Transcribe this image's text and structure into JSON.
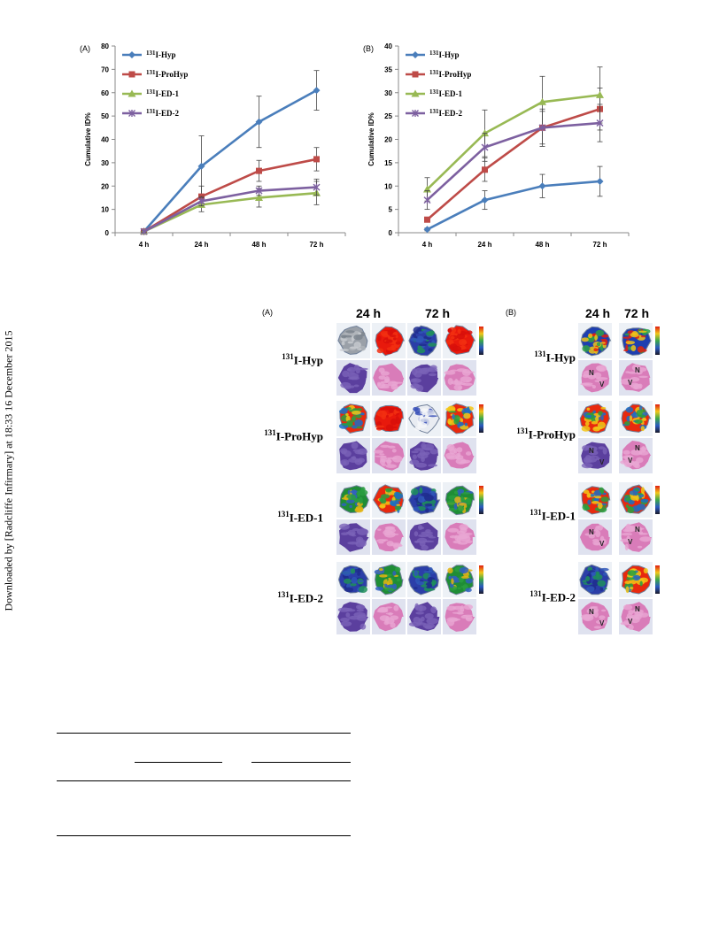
{
  "watermark": {
    "text": "Downloaded by [Radcliffe Infirmary] at 18:33 16 December 2015"
  },
  "figure1": {
    "chart_data": [
      {
        "type": "line",
        "panel_label": "(A)",
        "ylabel": "Cumulative ID%",
        "xlabel": "",
        "categories": [
          "4 h",
          "24 h",
          "48 h",
          "72 h"
        ],
        "ylim": [
          0,
          80
        ],
        "yticks": [
          0,
          10,
          20,
          30,
          40,
          50,
          60,
          70,
          80
        ],
        "legend_position": "top-left",
        "series": [
          {
            "name": "131I-Hyp",
            "sup": "131",
            "base": "I-Hyp",
            "values": [
              0.5,
              28.5,
              47.5,
              61
            ],
            "err": [
              0.3,
              13,
              11,
              8.5
            ],
            "color": "#4a7ebb",
            "marker": "diamond"
          },
          {
            "name": "131I-ProHyp",
            "sup": "131",
            "base": "I-ProHyp",
            "values": [
              0.5,
              15.5,
              26.5,
              31.5
            ],
            "err": [
              0.3,
              4.5,
              4.5,
              5
            ],
            "color": "#be4b48",
            "marker": "square"
          },
          {
            "name": "131I-ED-1",
            "sup": "131",
            "base": "I-ED-1",
            "values": [
              0.5,
              12,
              15,
              17
            ],
            "err": [
              0.3,
              3,
              4,
              5
            ],
            "color": "#98b954",
            "marker": "triangle"
          },
          {
            "name": "131I-ED-2",
            "sup": "131",
            "base": "I-ED-2",
            "values": [
              0.5,
              13.5,
              18,
              19.5
            ],
            "err": [
              0.3,
              2,
              2,
              3.5
            ],
            "color": "#7d60a0",
            "marker": "x"
          }
        ]
      },
      {
        "type": "line",
        "panel_label": "(B)",
        "ylabel": "Cumulative ID%",
        "xlabel": "",
        "categories": [
          "4 h",
          "24 h",
          "48 h",
          "72 h"
        ],
        "ylim": [
          0,
          40
        ],
        "yticks": [
          0,
          5,
          10,
          15,
          20,
          25,
          30,
          35,
          40
        ],
        "legend_position": "top-left",
        "series": [
          {
            "name": "131I-Hyp",
            "sup": "131",
            "base": "I-Hyp",
            "values": [
              0.7,
              7,
              10,
              11
            ],
            "err": [
              0.3,
              2,
              2.5,
              3.2
            ],
            "color": "#4a7ebb",
            "marker": "diamond"
          },
          {
            "name": "131I-ProHyp",
            "sup": "131",
            "base": "I-ProHyp",
            "values": [
              2.8,
              13.5,
              22.5,
              26.5
            ],
            "err": [
              0.5,
              2.5,
              4,
              4.5
            ],
            "color": "#be4b48",
            "marker": "square"
          },
          {
            "name": "131I-ED-1",
            "sup": "131",
            "base": "I-ED-1",
            "values": [
              9.3,
              21.3,
              28,
              29.5
            ],
            "err": [
              2.5,
              5,
              5.5,
              6
            ],
            "color": "#98b954",
            "marker": "triangle"
          },
          {
            "name": "131I-ED-2",
            "sup": "131",
            "base": "I-ED-2",
            "values": [
              7,
              18.3,
              22.5,
              23.5
            ],
            "err": [
              2,
              3,
              3.5,
              4
            ],
            "color": "#7d60a0",
            "marker": "x"
          }
        ]
      }
    ]
  },
  "figure2": {
    "panelA": {
      "label": "(A)",
      "col_24": "24 h",
      "col_72": "72 h",
      "rows": [
        {
          "sup": "131",
          "base": "I-Hyp"
        },
        {
          "sup": "131",
          "base": "I-ProHyp"
        },
        {
          "sup": "131",
          "base": "I-ED-1"
        },
        {
          "sup": "131",
          "base": "I-ED-2"
        }
      ]
    },
    "panelB": {
      "label": "(B)",
      "col_24": "24 h",
      "col_72": "72 h",
      "rows": [
        {
          "sup": "131",
          "base": "I-Hyp"
        },
        {
          "sup": "131",
          "base": "I-ProHyp"
        },
        {
          "sup": "131",
          "base": "I-ED-1"
        },
        {
          "sup": "131",
          "base": "I-ED-2"
        }
      ],
      "histo_labels": [
        "N",
        "V"
      ]
    }
  }
}
